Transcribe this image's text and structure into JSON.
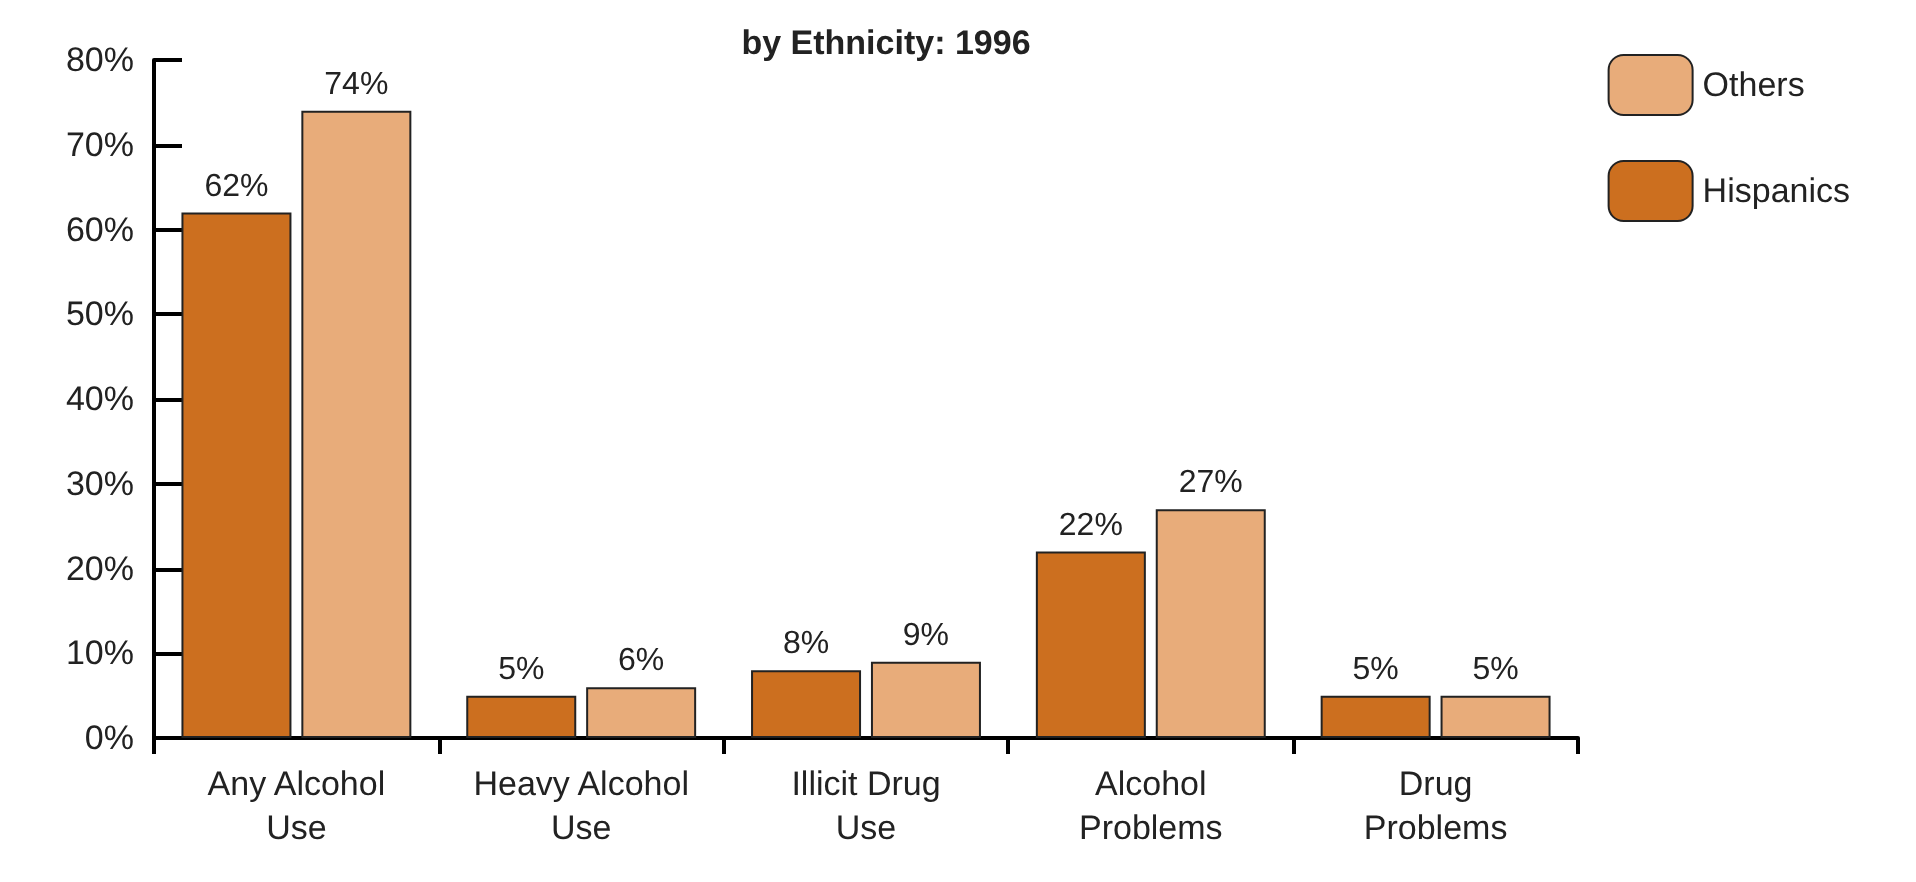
{
  "chart_data": {
    "type": "bar",
    "title": "by Ethnicity: 1996",
    "categories": [
      "Any Alcohol\nUse",
      "Heavy Alcohol\nUse",
      "Illicit Drug\nUse",
      "Alcohol\nProblems",
      "Drug\nProblems"
    ],
    "series": [
      {
        "name": "Hispanics",
        "color": "#cc6f1f",
        "values": [
          62,
          5,
          8,
          22,
          5
        ],
        "value_labels": [
          "62%",
          "5%",
          "8%",
          "22%",
          "5%"
        ]
      },
      {
        "name": "Others",
        "color": "#e8ac7a",
        "values": [
          74,
          6,
          9,
          27,
          5
        ],
        "value_labels": [
          "74%",
          "6%",
          "9%",
          "27%",
          "5%"
        ]
      }
    ],
    "ylim": [
      0,
      80
    ],
    "yticks": [
      {
        "value": 0,
        "label": "0%"
      },
      {
        "value": 10,
        "label": "10%"
      },
      {
        "value": 20,
        "label": "20%"
      },
      {
        "value": 30,
        "label": "30%"
      },
      {
        "value": 40,
        "label": "40%"
      },
      {
        "value": 50,
        "label": "50%"
      },
      {
        "value": 60,
        "label": "60%"
      },
      {
        "value": 70,
        "label": "70%"
      },
      {
        "value": 80,
        "label": "80%"
      }
    ],
    "grid": false,
    "legend": "top right"
  }
}
